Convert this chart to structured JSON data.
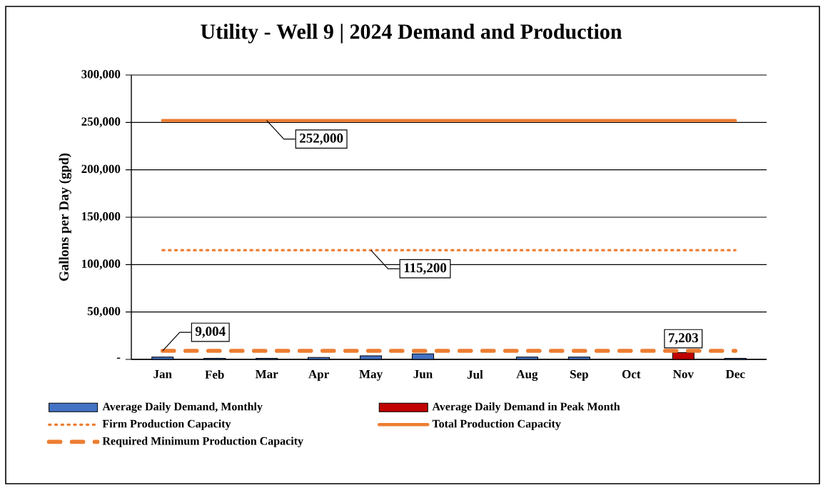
{
  "chart_data": {
    "type": "bar",
    "title": "Utility - Well 9 | 2024 Demand and Production",
    "ylabel": "Gallons per Day (gpd)",
    "categories": [
      "Jan",
      "Feb",
      "Mar",
      "Apr",
      "May",
      "Jun",
      "Jul",
      "Aug",
      "Sep",
      "Oct",
      "Nov",
      "Dec"
    ],
    "ylim": [
      0,
      300000
    ],
    "yticks": [
      {
        "value": 0,
        "label": "-"
      },
      {
        "value": 50000,
        "label": "50,000"
      },
      {
        "value": 100000,
        "label": "100,000"
      },
      {
        "value": 150000,
        "label": "150,000"
      },
      {
        "value": 200000,
        "label": "200,000"
      },
      {
        "value": 250000,
        "label": "250,000"
      },
      {
        "value": 300000,
        "label": "300,000"
      }
    ],
    "grid": "y",
    "legend": "bottom",
    "series": [
      {
        "name": "Average Daily Demand, Monthly",
        "color": "#4472c4",
        "values": [
          2500,
          1200,
          1200,
          2000,
          3800,
          5900,
          null,
          2500,
          2500,
          null,
          null,
          1200
        ]
      },
      {
        "name": "Average Daily Demand in Peak Month",
        "color": "#c00000",
        "values": [
          null,
          null,
          null,
          null,
          null,
          null,
          null,
          null,
          null,
          null,
          7203,
          null
        ],
        "value_labels": [
          null,
          null,
          null,
          null,
          null,
          null,
          null,
          null,
          null,
          null,
          "7,203",
          null
        ]
      },
      {
        "name": "Firm Production Capacity",
        "type": "line",
        "color": "#ed7d31",
        "line_style": "dotted",
        "values": [
          115200,
          115200,
          115200,
          115200,
          115200,
          115200,
          115200,
          115200,
          115200,
          115200,
          115200,
          115200
        ],
        "value_labels": [
          null,
          null,
          null,
          null,
          "115,200",
          null,
          null,
          null,
          null,
          null,
          null,
          null
        ]
      },
      {
        "name": "Total Production Capacity",
        "type": "line",
        "color": "#ed7d31",
        "line_style": "solid",
        "values": [
          252000,
          252000,
          252000,
          252000,
          252000,
          252000,
          252000,
          252000,
          252000,
          252000,
          252000,
          252000
        ],
        "value_labels": [
          null,
          null,
          "252,000",
          null,
          null,
          null,
          null,
          null,
          null,
          null,
          null,
          null
        ]
      },
      {
        "name": "Required Minimum Production Capacity",
        "type": "line",
        "color": "#ed7d31",
        "line_style": "dashed",
        "values": [
          9004,
          9004,
          9004,
          9004,
          9004,
          9004,
          9004,
          9004,
          9004,
          9004,
          9004,
          9004
        ],
        "value_labels": [
          "9,004",
          null,
          null,
          null,
          null,
          null,
          null,
          null,
          null,
          null,
          null,
          null
        ]
      }
    ]
  }
}
